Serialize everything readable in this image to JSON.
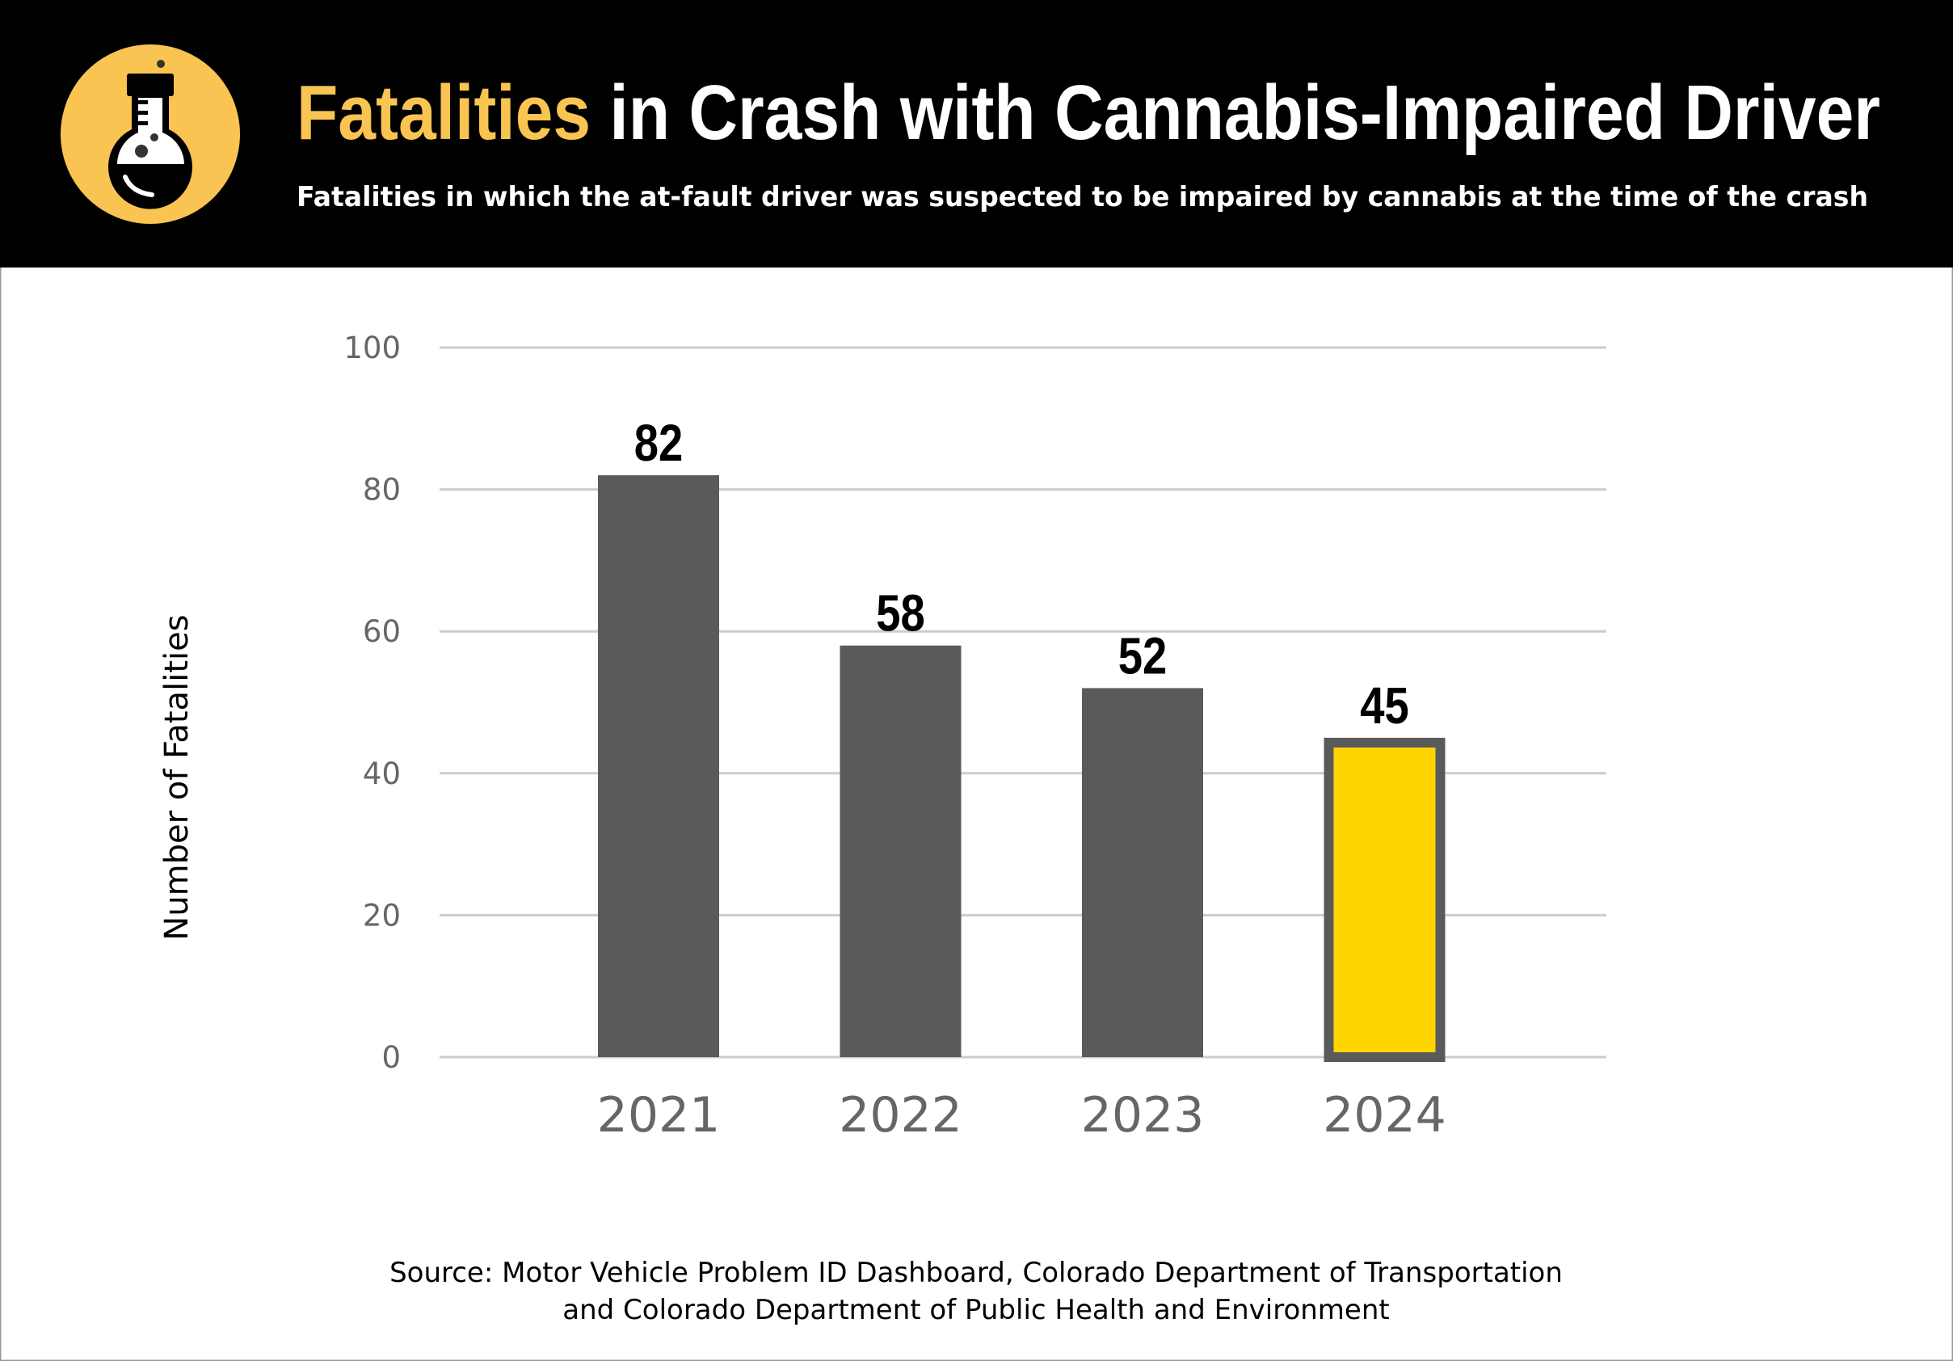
{
  "header": {
    "title_highlight": "Fatalities",
    "title_rest": " in Crash with Cannabis-Impaired Driver",
    "subtitle": "Fatalities in which the at-fault driver was suspected to be impaired by cannabis at the time of the crash",
    "icon": "flask-icon"
  },
  "colors": {
    "header_bg": "#000000",
    "accent": "#F9C451",
    "bar": "#5A5A5A",
    "highlight_bar": "#FFD500",
    "grid": "#CCCCCC",
    "tick_text": "#666666"
  },
  "chart_data": {
    "type": "bar",
    "categories": [
      "2021",
      "2022",
      "2023",
      "2024"
    ],
    "values": [
      82,
      58,
      52,
      45
    ],
    "data_labels": [
      "82",
      "58",
      "52",
      "45"
    ],
    "highlighted_category": "2024",
    "ylabel": "Number of Fatalities",
    "xlabel": "",
    "ylim": [
      0,
      100
    ],
    "yticks": [
      "0",
      "20",
      "40",
      "60",
      "80",
      "100"
    ],
    "grid": true,
    "legend": "none"
  },
  "footer": {
    "source_line1": "Source: Motor Vehicle Problem ID Dashboard, Colorado Department of Transportation",
    "source_line2": "and Colorado Department of Public Health and Environment"
  }
}
